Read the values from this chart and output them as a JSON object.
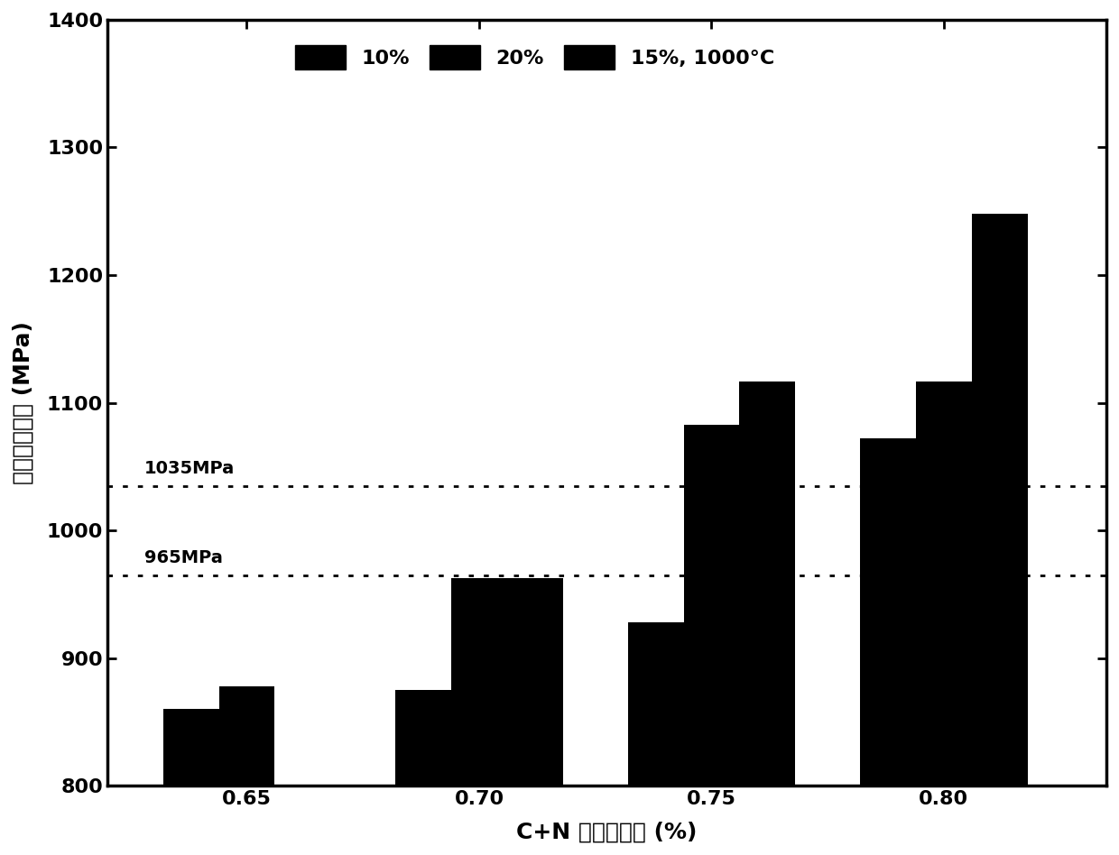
{
  "categories": [
    0.65,
    0.7,
    0.75,
    0.8
  ],
  "series": {
    "10%": [
      860,
      875,
      928,
      1072
    ],
    "20%": [
      878,
      963,
      1083,
      1117
    ],
    "15%, 1000°C": [
      null,
      963,
      1117,
      1248
    ]
  },
  "bar_color": "#000000",
  "bar_width": 0.012,
  "ylim": [
    800,
    1400
  ],
  "yticks": [
    800,
    900,
    1000,
    1100,
    1200,
    1300,
    1400
  ],
  "xlabel": "C+N 质量百分比 (%)",
  "ylabel": "室温屈服强度 (MPa)",
  "hlines": [
    1035,
    965
  ],
  "hline_labels": [
    "1035MPa",
    "965MPa"
  ],
  "legend_labels": [
    "10%",
    "20%",
    "15%, 1000°C"
  ],
  "background_color": "#ffffff",
  "xlabel_fontsize": 18,
  "ylabel_fontsize": 18,
  "tick_fontsize": 16,
  "legend_fontsize": 16
}
